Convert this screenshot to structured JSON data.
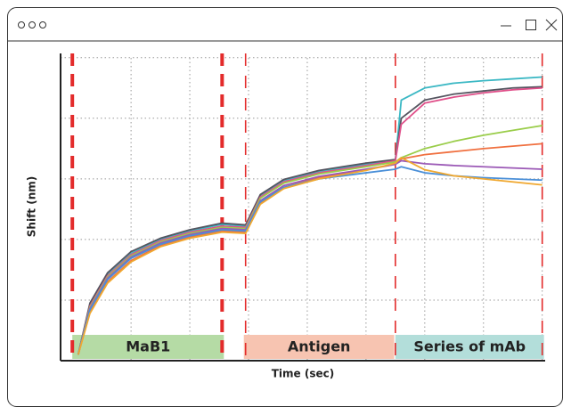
{
  "window": {
    "controls": [
      "minimize",
      "maximize",
      "close"
    ]
  },
  "chart_data": {
    "type": "line",
    "xlabel": "Time (sec)",
    "ylabel": "Shift (nm)",
    "xlim": [
      -0.2,
      8.05
    ],
    "ylim": [
      0,
      5.07
    ],
    "xticks": [
      1,
      2,
      3,
      4,
      5,
      6,
      7,
      8
    ],
    "yticks": [
      1,
      2,
      3,
      4,
      5
    ],
    "grid": true,
    "x": [
      0.1,
      0.3,
      0.6,
      1,
      1.5,
      2,
      2.55,
      2.95,
      3.2,
      3.6,
      4.2,
      5,
      5.5,
      5.6,
      6,
      6.5,
      7,
      7.5,
      8
    ],
    "series": [
      {
        "color": "#3bb8c4",
        "values": [
          0.1,
          0.92,
          1.42,
          1.77,
          2.0,
          2.14,
          2.25,
          2.22,
          2.72,
          2.97,
          3.12,
          3.24,
          3.3,
          4.3,
          4.5,
          4.58,
          4.62,
          4.65,
          4.68
        ]
      },
      {
        "color": "#555560",
        "values": [
          0.1,
          0.95,
          1.45,
          1.8,
          2.02,
          2.16,
          2.27,
          2.24,
          2.74,
          2.99,
          3.14,
          3.26,
          3.32,
          4.0,
          4.3,
          4.4,
          4.45,
          4.5,
          4.52
        ]
      },
      {
        "color": "#e0508a",
        "values": [
          0.1,
          0.9,
          1.4,
          1.75,
          1.98,
          2.12,
          2.22,
          2.2,
          2.7,
          2.95,
          3.1,
          3.22,
          3.3,
          3.9,
          4.25,
          4.35,
          4.42,
          4.47,
          4.5
        ]
      },
      {
        "color": "#9acd4a",
        "values": [
          0.1,
          0.88,
          1.38,
          1.73,
          1.96,
          2.1,
          2.2,
          2.18,
          2.68,
          2.93,
          3.08,
          3.2,
          3.28,
          3.35,
          3.5,
          3.62,
          3.72,
          3.8,
          3.88
        ]
      },
      {
        "color": "#f07040",
        "values": [
          0.1,
          0.8,
          1.3,
          1.65,
          1.9,
          2.04,
          2.14,
          2.12,
          2.6,
          2.86,
          3.02,
          3.15,
          3.24,
          3.33,
          3.4,
          3.45,
          3.5,
          3.54,
          3.58
        ]
      },
      {
        "color": "#9b59b6",
        "values": [
          0.1,
          0.86,
          1.36,
          1.71,
          1.94,
          2.08,
          2.18,
          2.16,
          2.64,
          2.89,
          3.04,
          3.16,
          3.24,
          3.3,
          3.25,
          3.22,
          3.2,
          3.18,
          3.16
        ]
      },
      {
        "color": "#4a8fd8",
        "values": [
          0.1,
          0.84,
          1.34,
          1.69,
          1.92,
          2.06,
          2.16,
          2.14,
          2.62,
          2.86,
          3.0,
          3.1,
          3.16,
          3.2,
          3.1,
          3.05,
          3.02,
          3.0,
          2.98
        ]
      },
      {
        "color": "#f0a830",
        "values": [
          0.1,
          0.78,
          1.28,
          1.63,
          1.88,
          2.02,
          2.12,
          2.1,
          2.58,
          2.84,
          3.0,
          3.14,
          3.26,
          3.35,
          3.15,
          3.05,
          3.0,
          2.95,
          2.9
        ]
      }
    ],
    "phases": [
      {
        "label": "MaB1",
        "start": 0,
        "end": 2.58,
        "color": "#b5dba5"
      },
      {
        "label": "Antigen",
        "start": 2.92,
        "end": 5.48,
        "color": "#f7c4b1"
      },
      {
        "label": "Series of mAb",
        "start": 5.5,
        "end": 8.03,
        "color": "#b3deda"
      }
    ],
    "event_lines": [
      {
        "x": 0,
        "style": "thick"
      },
      {
        "x": 2.55,
        "style": "thick"
      },
      {
        "x": 2.95,
        "style": "thin"
      },
      {
        "x": 5.5,
        "style": "thin"
      },
      {
        "x": 8,
        "style": "thin"
      }
    ],
    "event_color": "#e32b2b"
  }
}
